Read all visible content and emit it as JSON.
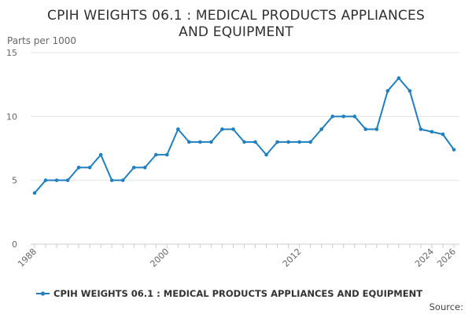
{
  "chart_data": {
    "type": "line",
    "title_line1": "CPIH WEIGHTS 06.1 : MEDICAL PRODUCTS APPLIANCES",
    "title_line2": "AND EQUIPMENT",
    "ylabel": "Parts per 1000",
    "xlabel": "",
    "ylim": [
      0,
      15
    ],
    "y_ticks": [
      0,
      5,
      10,
      15
    ],
    "x_range": [
      1988,
      2026
    ],
    "x_tick_labels": [
      {
        "value": 1988,
        "label": "1988"
      },
      {
        "value": 2000,
        "label": "2000"
      },
      {
        "value": 2012,
        "label": "2012"
      },
      {
        "value": 2024,
        "label": "2024"
      },
      {
        "value": 2026,
        "label": "2026"
      }
    ],
    "series": [
      {
        "name": "CPIH WEIGHTS 06.1 : MEDICAL PRODUCTS APPLIANCES AND EQUIPMENT",
        "color": "#1f7fbf",
        "x": [
          1988,
          1989,
          1990,
          1991,
          1992,
          1993,
          1994,
          1995,
          1996,
          1997,
          1998,
          1999,
          2000,
          2001,
          2002,
          2003,
          2004,
          2005,
          2006,
          2007,
          2008,
          2009,
          2010,
          2011,
          2012,
          2013,
          2014,
          2015,
          2016,
          2017,
          2018,
          2019,
          2020,
          2021,
          2022,
          2023,
          2024,
          2025,
          2026
        ],
        "values": [
          4,
          5,
          5,
          5,
          6,
          6,
          7,
          5,
          5,
          6,
          6,
          7,
          7,
          9,
          8,
          8,
          8,
          9,
          9,
          8,
          8,
          7,
          8,
          8,
          8,
          8,
          9,
          10,
          10,
          10,
          9,
          9,
          12,
          13,
          12,
          9,
          8.8,
          8.6,
          7.4
        ]
      }
    ],
    "legend": {
      "position": "bottom",
      "label": "CPIH WEIGHTS 06.1 : MEDICAL PRODUCTS APPLIANCES AND EQUIPMENT"
    },
    "source_label": "Source:",
    "grid": true,
    "colors": {
      "line": "#1f7fbf",
      "grid": "#e6e6e6",
      "axis": "#cccccc"
    }
  }
}
